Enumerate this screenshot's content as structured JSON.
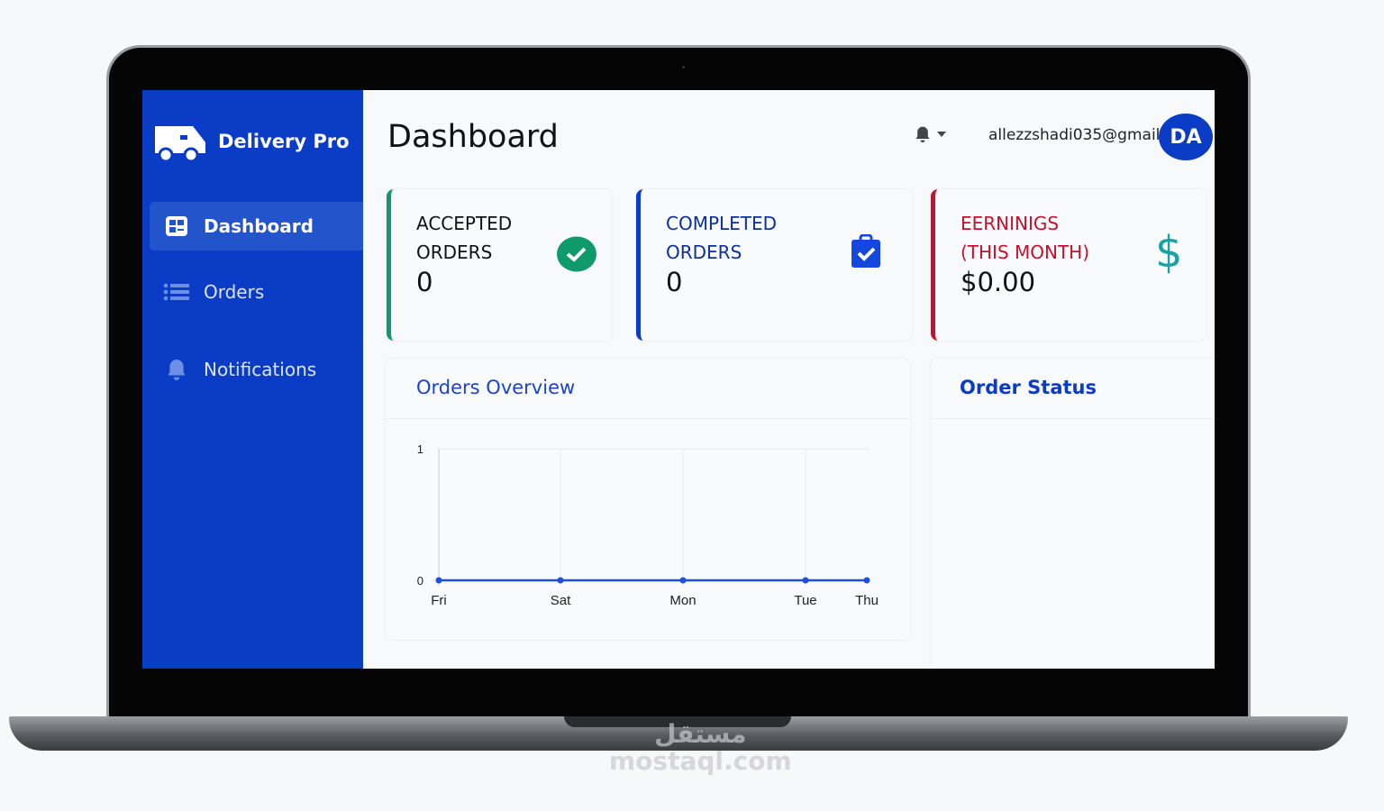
{
  "brand": {
    "name": "Delivery Pro",
    "color": "#0b3cc5"
  },
  "sidebar": {
    "items": [
      {
        "label": "Dashboard",
        "icon": "dashboard-grid-icon",
        "active": true
      },
      {
        "label": "Orders",
        "icon": "list-icon"
      },
      {
        "label": "Notifications",
        "icon": "bell-icon"
      }
    ]
  },
  "header": {
    "title": "Dashboard",
    "email": "allezzshadi035@gmail",
    "avatar": "DA"
  },
  "stats": [
    {
      "line1": "ACCEPTED",
      "line2": "ORDERS",
      "value": "0",
      "color": "#0f9a6b",
      "icon": "check-circle-icon"
    },
    {
      "line1": "COMPLETED",
      "line2": "ORDERS",
      "value": "0",
      "color": "#0b3cc5",
      "icon": "clipboard-check-icon"
    },
    {
      "line1": "EERNINIGS",
      "line2": "(THIS MONTH)",
      "value": "$0.00",
      "color": "#c8102e",
      "icon": "dollar-icon"
    }
  ],
  "panels": {
    "orders_overview": "Orders Overview",
    "order_status": "Order Status"
  },
  "chart_data": {
    "type": "line",
    "categories": [
      "Fri",
      "Sat",
      "Mon",
      "Tue",
      "Thu"
    ],
    "values": [
      0,
      0,
      0,
      0,
      0
    ],
    "ylim": [
      0,
      1
    ],
    "yticks": [
      "0",
      "1"
    ],
    "grid": true,
    "color": "#1d4fe0"
  },
  "watermark": "مستقل mostaql.com"
}
